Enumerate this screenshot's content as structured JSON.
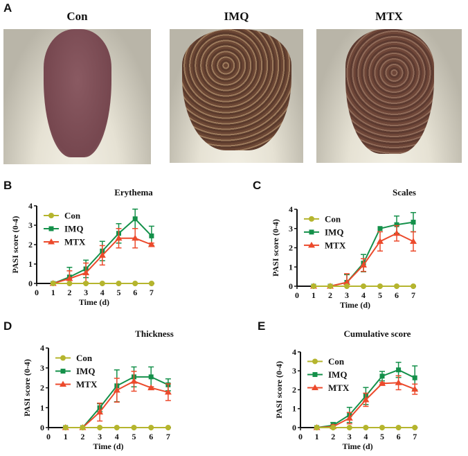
{
  "panels": {
    "a": {
      "label": "A",
      "photos": [
        {
          "title": "Con"
        },
        {
          "title": "IMQ"
        },
        {
          "title": "MTX"
        }
      ]
    }
  },
  "colors": {
    "Con": "#b5b52e",
    "IMQ": "#14904a",
    "MTX": "#ec4a2c"
  },
  "chart_data": [
    {
      "panel": "B",
      "type": "line",
      "title": "Erythema",
      "xlabel": "Time (d)",
      "ylabel": "PASI score (0-4)",
      "xlim": [
        0,
        7
      ],
      "ylim": [
        0,
        4
      ],
      "xticks": [
        "0",
        "1",
        "2",
        "3",
        "4",
        "5",
        "6",
        "7"
      ],
      "yticks": [
        "0",
        "1",
        "2",
        "3",
        "4"
      ],
      "legend": "top-left",
      "x": [
        1,
        2,
        3,
        4,
        5,
        6,
        7
      ],
      "series": [
        {
          "name": "Con",
          "marker": "circle",
          "values": [
            0,
            0,
            0,
            0,
            0,
            0,
            0
          ],
          "error": [
            0,
            0,
            0,
            0,
            0,
            0,
            0
          ]
        },
        {
          "name": "IMQ",
          "marker": "square",
          "values": [
            0,
            0.33,
            0.75,
            1.67,
            2.58,
            3.33,
            2.45
          ],
          "error": [
            0,
            0.5,
            0.45,
            0.5,
            0.5,
            0.5,
            0.5
          ]
        },
        {
          "name": "MTX",
          "marker": "triangle",
          "values": [
            0,
            0.25,
            0.55,
            1.45,
            2.33,
            2.33,
            2.0
          ],
          "error": [
            0,
            0.4,
            0.5,
            0.5,
            0.5,
            0.5,
            0.08
          ]
        }
      ]
    },
    {
      "panel": "C",
      "type": "line",
      "title": "Scales",
      "xlabel": "Time (d)",
      "ylabel": "PASI score (0-4)",
      "xlim": [
        0,
        7
      ],
      "ylim": [
        0,
        4
      ],
      "xticks": [
        "0",
        "1",
        "2",
        "3",
        "4",
        "5",
        "6",
        "7"
      ],
      "yticks": [
        "0",
        "1",
        "2",
        "3",
        "4"
      ],
      "legend": "top-left",
      "x": [
        1,
        2,
        3,
        4,
        5,
        6,
        7
      ],
      "series": [
        {
          "name": "Con",
          "marker": "circle",
          "values": [
            0,
            0,
            0,
            0,
            0,
            0,
            0
          ],
          "error": [
            0,
            0,
            0,
            0,
            0,
            0,
            0
          ]
        },
        {
          "name": "IMQ",
          "marker": "square",
          "values": [
            0,
            0,
            0.2,
            1.2,
            3.0,
            3.2,
            3.33
          ],
          "error": [
            0,
            0,
            0.4,
            0.45,
            0,
            0.45,
            0.5
          ]
        },
        {
          "name": "MTX",
          "marker": "triangle",
          "values": [
            0,
            0,
            0.2,
            1.1,
            2.33,
            2.75,
            2.33
          ],
          "error": [
            0,
            0,
            0.45,
            0.33,
            0.5,
            0.4,
            0.5
          ]
        }
      ]
    },
    {
      "panel": "D",
      "type": "line",
      "title": "Thickness",
      "xlabel": "Time (d)",
      "ylabel": "PASI score (0-4)",
      "xlim": [
        0,
        7
      ],
      "ylim": [
        0,
        4
      ],
      "xticks": [
        "0",
        "1",
        "2",
        "3",
        "4",
        "5",
        "6",
        "7"
      ],
      "yticks": [
        "0",
        "1",
        "2",
        "3",
        "4"
      ],
      "legend": "top-left",
      "x": [
        1,
        2,
        3,
        4,
        5,
        6,
        7
      ],
      "series": [
        {
          "name": "Con",
          "marker": "circle",
          "values": [
            0,
            0,
            0,
            0,
            0,
            0,
            0
          ],
          "error": [
            0,
            0,
            0,
            0,
            0,
            0,
            0
          ]
        },
        {
          "name": "IMQ",
          "marker": "square",
          "values": [
            0,
            0,
            1.0,
            2.1,
            2.55,
            2.55,
            2.15
          ],
          "error": [
            0,
            0,
            0.2,
            0.8,
            0.5,
            0.5,
            0.3
          ]
        },
        {
          "name": "MTX",
          "marker": "triangle",
          "values": [
            0,
            0,
            0.78,
            1.88,
            2.33,
            2.0,
            1.78
          ],
          "error": [
            0,
            0,
            0.45,
            0.6,
            0.5,
            0.05,
            0.42
          ]
        }
      ]
    },
    {
      "panel": "E",
      "type": "line",
      "title": "Cumulative score",
      "xlabel": "Time (d)",
      "ylabel": "PASI score (0-4)",
      "xlim": [
        0,
        7
      ],
      "ylim": [
        0,
        4
      ],
      "xticks": [
        "0",
        "1",
        "2",
        "3",
        "4",
        "5",
        "6",
        "7"
      ],
      "yticks": [
        "0",
        "1",
        "2",
        "3",
        "4"
      ],
      "legend": "top-left",
      "x": [
        1,
        2,
        3,
        4,
        5,
        6,
        7
      ],
      "series": [
        {
          "name": "Con",
          "marker": "circle",
          "values": [
            0,
            0,
            0,
            0,
            0,
            0,
            0
          ],
          "error": [
            0,
            0,
            0,
            0,
            0,
            0,
            0
          ]
        },
        {
          "name": "IMQ",
          "marker": "square",
          "values": [
            0,
            0.12,
            0.67,
            1.67,
            2.72,
            3.05,
            2.63
          ],
          "error": [
            0,
            0.15,
            0.4,
            0.45,
            0.25,
            0.4,
            0.63
          ]
        },
        {
          "name": "MTX",
          "marker": "triangle",
          "values": [
            0,
            0.05,
            0.5,
            1.47,
            2.33,
            2.37,
            2.03
          ],
          "error": [
            0,
            0.1,
            0.3,
            0.35,
            0.05,
            0.37,
            0.27
          ]
        }
      ]
    }
  ]
}
